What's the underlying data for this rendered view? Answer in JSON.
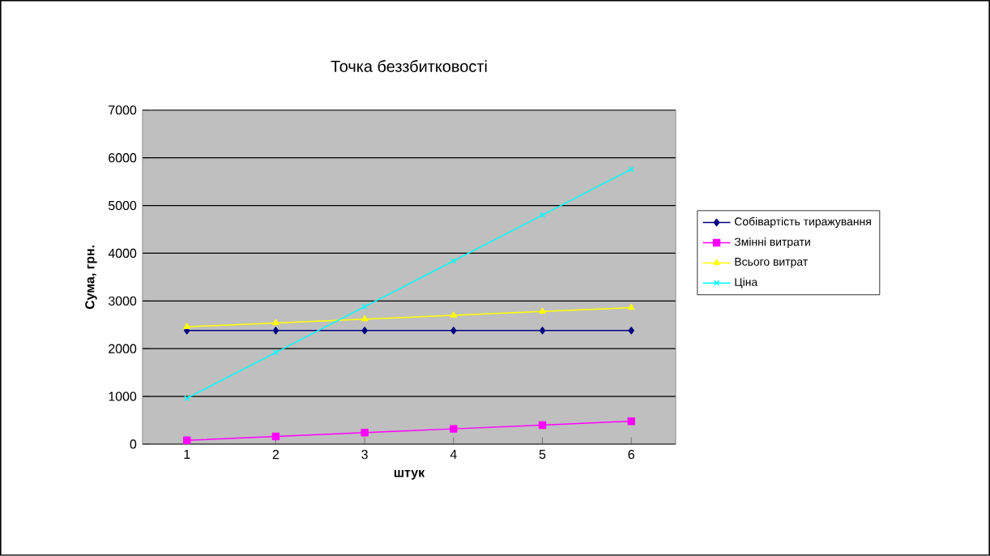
{
  "chart_data": {
    "type": "line",
    "title": "Точка беззбитковості",
    "xlabel": "штук",
    "ylabel": "Сума, грн.",
    "categories": [
      "1",
      "2",
      "3",
      "4",
      "5",
      "6"
    ],
    "series": [
      {
        "name": "Собівартість тиражування",
        "color": "#000080",
        "marker": "diamond",
        "values": [
          2380,
          2380,
          2380,
          2380,
          2380,
          2380
        ]
      },
      {
        "name": "Змінні витрати",
        "color": "#ff00ff",
        "marker": "square",
        "values": [
          80,
          160,
          240,
          320,
          400,
          480
        ]
      },
      {
        "name": "Всього витрат",
        "color": "#ffff00",
        "marker": "triangle",
        "values": [
          2460,
          2540,
          2620,
          2700,
          2780,
          2860
        ]
      },
      {
        "name": "Ціна",
        "color": "#00ffff",
        "marker": "cross",
        "values": [
          960,
          1920,
          2880,
          3840,
          4800,
          5760
        ]
      }
    ],
    "ylim": [
      0,
      7000
    ],
    "yticks": [
      0,
      1000,
      2000,
      3000,
      4000,
      5000,
      6000,
      7000
    ],
    "grid": "y",
    "legend": "right"
  }
}
